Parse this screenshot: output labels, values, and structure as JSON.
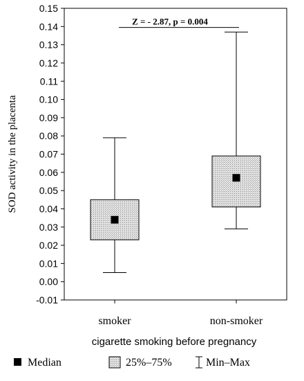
{
  "chart_data": {
    "type": "boxplot",
    "categories": [
      "smoker",
      "non-smoker"
    ],
    "xlabel": "cigarette smoking before pregnancy",
    "ylabel": "SOD activity in the placenta",
    "ylim": [
      -0.01,
      0.15
    ],
    "yticks": [
      "-0.01",
      "0.00",
      "0.01",
      "0.02",
      "0.03",
      "0.04",
      "0.05",
      "0.06",
      "0.07",
      "0.08",
      "0.09",
      "0.10",
      "0.11",
      "0.12",
      "0.13",
      "0.14",
      "0.15"
    ],
    "series": [
      {
        "category": "smoker",
        "min": 0.005,
        "q1": 0.023,
        "median": 0.034,
        "q3": 0.045,
        "max": 0.079
      },
      {
        "category": "non-smoker",
        "min": 0.029,
        "q1": 0.041,
        "median": 0.057,
        "q3": 0.069,
        "max": 0.137
      }
    ],
    "annotation": "Z = - 2.87, p = 0.004",
    "legend": {
      "median": "Median",
      "box": "25%–75%",
      "whisker": "Min–Max"
    },
    "colors": {
      "box_fill": "#d8d8d8",
      "marker": "#000000"
    },
    "grid": false,
    "legend_position": "bottom"
  }
}
